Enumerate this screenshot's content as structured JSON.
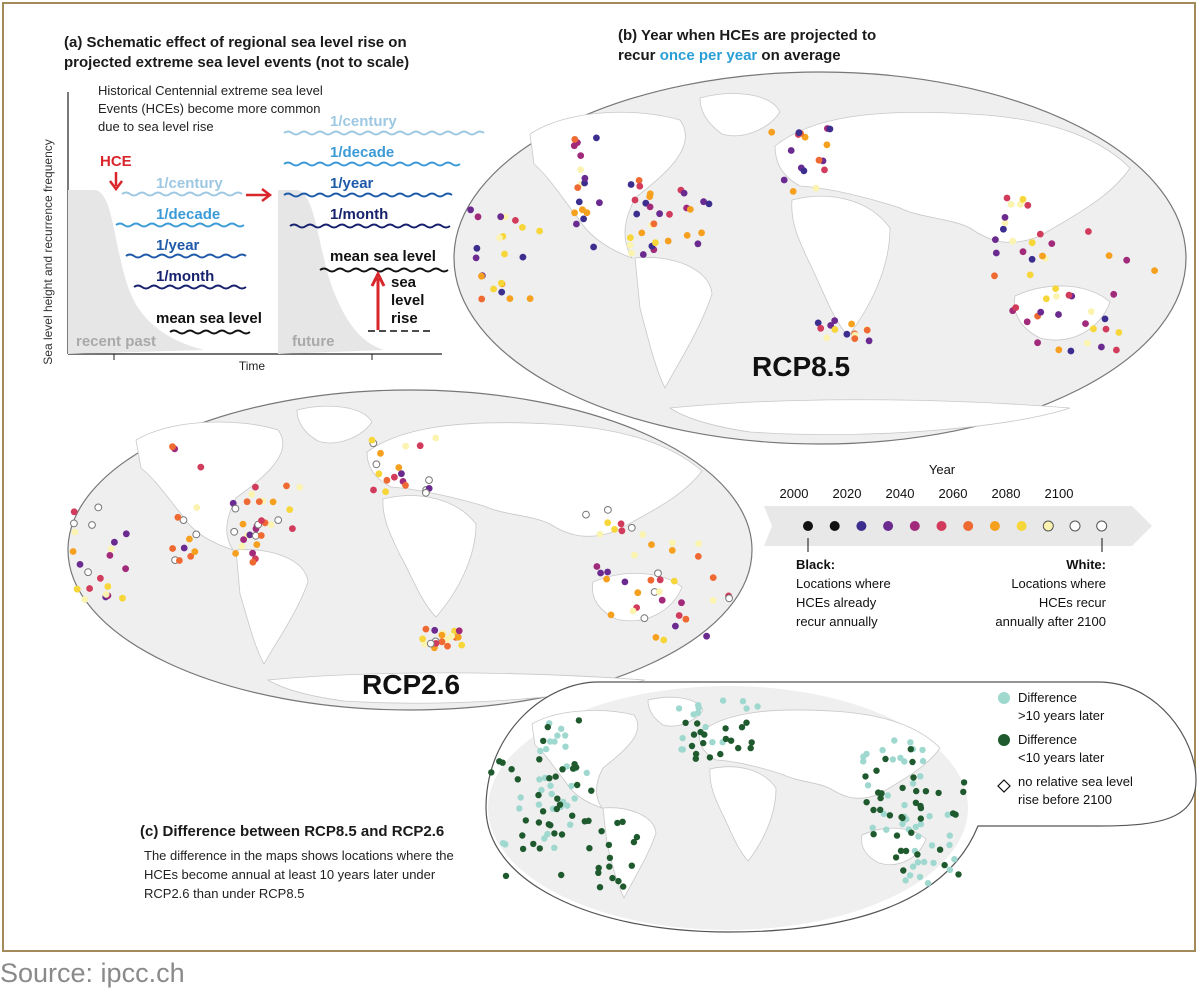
{
  "panel_a": {
    "title_line1": "(a) Schematic effect of regional sea level rise on",
    "title_line2": "projected extreme sea level events (not to scale)",
    "caption_line1": "Historical Centennial extreme sea level",
    "caption_line2": "Events (HCEs) become more common",
    "caption_line3": "due to sea level rise",
    "y_axis_label": "Sea level height and recurrence frequency",
    "x_axis_label": "Time",
    "hce_label": "HCE",
    "past_label": "recent past",
    "future_label": "future",
    "left_levels": [
      "1/century",
      "1/decade",
      "1/year",
      "1/month"
    ],
    "left_mean": "mean sea level",
    "right_levels": [
      "1/century",
      "1/decade",
      "1/year",
      "1/month"
    ],
    "right_mean": "mean sea level",
    "slr_line1": "sea",
    "slr_line2": "level",
    "slr_line3": "rise"
  },
  "panel_b": {
    "title_line1": "(b) Year when HCEs are projected to",
    "title_line2_pre": "recur ",
    "title_line2_highlight": "once per year",
    "title_line2_post": " on average",
    "highlight_color": "#2a9fd6",
    "map_top_label": "RCP8.5",
    "map_bottom_label": "RCP2.6"
  },
  "legend_year": {
    "title": "Year",
    "ticks": [
      "2000",
      "2020",
      "2040",
      "2060",
      "2080",
      "2100"
    ],
    "colors": [
      "#111111",
      "#111111",
      "#3b2e8f",
      "#6a2a8f",
      "#a12a7a",
      "#d23c5c",
      "#ef6a32",
      "#f6a020",
      "#f7d63a",
      "#fbf3b0",
      "#ffffff",
      "#ffffff"
    ],
    "black_title": "Black:",
    "black_line1": "Locations where",
    "black_line2": "HCEs already",
    "black_line3": "recur annually",
    "white_title": "White:",
    "white_line1": "Locations where",
    "white_line2": "HCEs recur",
    "white_line3": "annually after 2100"
  },
  "panel_c": {
    "title": "(c) Difference between RCP8.5 and RCP2.6",
    "desc_line1": "The difference in the maps shows locations where the",
    "desc_line2": "HCEs become annual at least 10 years later under",
    "desc_line3": "RCP2.6 than under RCP8.5",
    "legend1_line1": "Difference",
    "legend1_line2": ">10 years later",
    "legend2_line1": "Difference",
    "legend2_line2": "<10 years later",
    "legend3_line1": "no relative sea level",
    "legend3_line2": "rise before 2100",
    "color_later": "#9fd8cf",
    "color_earlier": "#1f5a2e"
  },
  "source": "Source: ipcc.ch"
}
